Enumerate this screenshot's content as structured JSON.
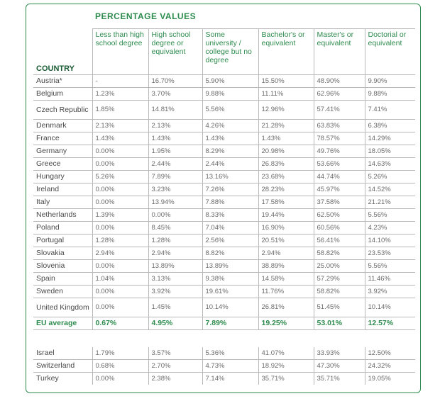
{
  "table": {
    "section_title": "PERCENTAGE VALUES",
    "country_header": "COUNTRY",
    "columns": [
      "Less than high school degree",
      "High school degree or equivalent",
      "Some university / college but no degree",
      "Bachelor's or equivalent",
      "Master's or equivalent",
      "Doctorial or equivalent"
    ],
    "rows": [
      {
        "country": "Austria*",
        "values": [
          "-",
          "16.70%",
          "5.90%",
          "15.50%",
          "48.90%",
          "9.90%"
        ]
      },
      {
        "country": "Belgium",
        "values": [
          "1.23%",
          "3.70%",
          "9.88%",
          "11.11%",
          "62.96%",
          "9.88%"
        ]
      },
      {
        "country": "Czech Republic",
        "values": [
          "1.85%",
          "14.81%",
          "5.56%",
          "12.96%",
          "57.41%",
          "7.41%"
        ]
      },
      {
        "country": "Denmark",
        "values": [
          "2.13%",
          "2.13%",
          "4.26%",
          "21.28%",
          "63.83%",
          "6.38%"
        ]
      },
      {
        "country": "France",
        "values": [
          "1.43%",
          "1.43%",
          "1.43%",
          "1.43%",
          "78.57%",
          "14.29%"
        ]
      },
      {
        "country": "Germany",
        "values": [
          "0.00%",
          "1.95%",
          "8.29%",
          "20.98%",
          "49.76%",
          "18.05%"
        ]
      },
      {
        "country": "Greece",
        "values": [
          "0.00%",
          "2.44%",
          "2.44%",
          "26.83%",
          "53.66%",
          "14.63%"
        ]
      },
      {
        "country": "Hungary",
        "values": [
          "5.26%",
          "7.89%",
          "13.16%",
          "23.68%",
          "44.74%",
          "5.26%"
        ]
      },
      {
        "country": "Ireland",
        "values": [
          "0.00%",
          "3.23%",
          "7.26%",
          "28.23%",
          "45.97%",
          "14.52%"
        ]
      },
      {
        "country": "Italy",
        "values": [
          "0.00%",
          "13.94%",
          "7.88%",
          "17.58%",
          "37.58%",
          "21.21%"
        ]
      },
      {
        "country": "Netherlands",
        "values": [
          "1.39%",
          "0.00%",
          "8.33%",
          "19.44%",
          "62.50%",
          "5.56%"
        ]
      },
      {
        "country": "Poland",
        "values": [
          "0.00%",
          "8.45%",
          "7.04%",
          "16.90%",
          "60.56%",
          "4.23%"
        ]
      },
      {
        "country": "Portugal",
        "values": [
          "1.28%",
          "1.28%",
          "2.56%",
          "20.51%",
          "56.41%",
          "14.10%"
        ]
      },
      {
        "country": "Slovakia",
        "values": [
          "2.94%",
          "2.94%",
          "8.82%",
          "2.94%",
          "58.82%",
          "23.53%"
        ]
      },
      {
        "country": "Slovenia",
        "values": [
          "0.00%",
          "13.89%",
          "13.89%",
          "38.89%",
          "25.00%",
          "5.56%"
        ]
      },
      {
        "country": "Spain",
        "values": [
          "1.04%",
          "3.13%",
          "9.38%",
          "14.58%",
          "57.29%",
          "11.46%"
        ]
      },
      {
        "country": "Sweden",
        "values": [
          "0.00%",
          "3.92%",
          "19.61%",
          "11.76%",
          "58.82%",
          "3.92%"
        ]
      },
      {
        "country": "United Kingdom",
        "values": [
          "0.00%",
          "1.45%",
          "10.14%",
          "26.81%",
          "51.45%",
          "10.14%"
        ]
      }
    ],
    "eu_average": {
      "country": "EU average",
      "values": [
        "0.67%",
        "4.95%",
        "7.89%",
        "19.25%",
        "53.01%",
        "12.57%"
      ]
    },
    "other_rows": [
      {
        "country": "Israel",
        "values": [
          "1.79%",
          "3.57%",
          "5.36%",
          "41.07%",
          "33.93%",
          "12.50%"
        ]
      },
      {
        "country": "Switzerland",
        "values": [
          "0.68%",
          "2.70%",
          "4.73%",
          "18.92%",
          "47.30%",
          "24.32%"
        ]
      },
      {
        "country": "Turkey",
        "values": [
          "0.00%",
          "2.38%",
          "7.14%",
          "35.71%",
          "35.71%",
          "19.05%"
        ]
      }
    ]
  },
  "colors": {
    "accent": "#2e8b4e",
    "rule": "#b9b9b9",
    "text": "#4a4a4a"
  }
}
